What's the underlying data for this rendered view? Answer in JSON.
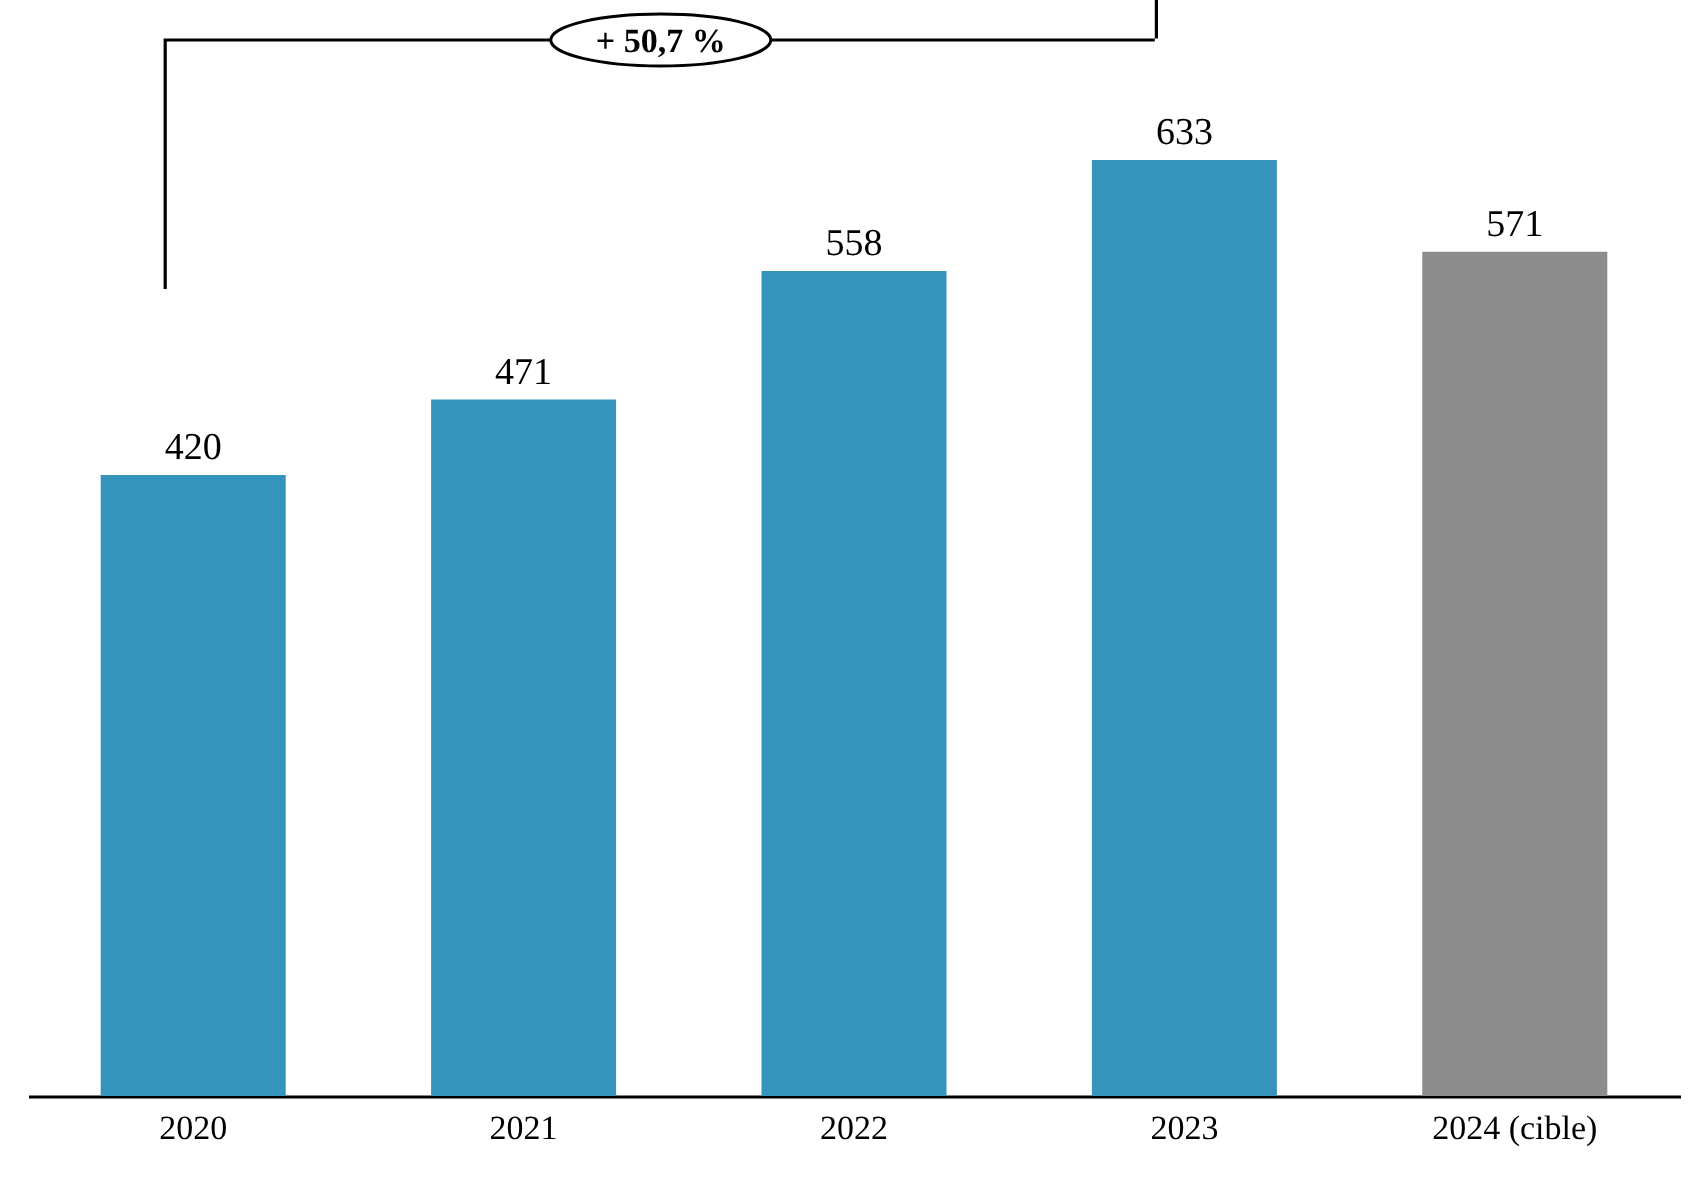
{
  "chart_data": {
    "type": "bar",
    "categories": [
      "2020",
      "2021",
      "2022",
      "2023",
      "2024 (cible)"
    ],
    "values": [
      420,
      471,
      558,
      633,
      571
    ],
    "colors": [
      "#3594bb",
      "#3594bb",
      "#3594bb",
      "#3594bb",
      "#8c8c8c"
    ],
    "data_labels": true,
    "legend": false,
    "annotations": [
      "+ 50,7 %"
    ]
  }
}
